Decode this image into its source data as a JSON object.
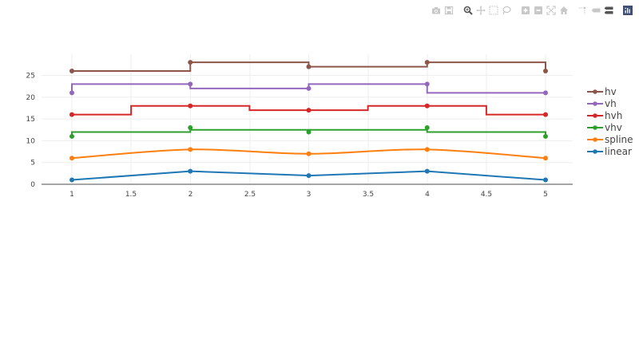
{
  "modebar": {
    "buttons": [
      {
        "name": "camera-icon",
        "title": "Download plot as a png"
      },
      {
        "name": "save-icon",
        "title": "Save and edit plot in cloud"
      },
      {
        "name": "zoom-icon",
        "title": "Zoom",
        "active": true
      },
      {
        "name": "pan-icon",
        "title": "Pan"
      },
      {
        "name": "box-select-icon",
        "title": "Box Select"
      },
      {
        "name": "lasso-icon",
        "title": "Lasso Select"
      },
      {
        "name": "zoom-in-icon",
        "title": "Zoom in"
      },
      {
        "name": "zoom-out-icon",
        "title": "Zoom out"
      },
      {
        "name": "autoscale-icon",
        "title": "Autoscale"
      },
      {
        "name": "home-icon",
        "title": "Reset axes"
      },
      {
        "name": "spikelines-icon",
        "title": "Toggle Spike Lines"
      },
      {
        "name": "hover-closest-icon",
        "title": "Show closest data on hover"
      },
      {
        "name": "hover-compare-icon",
        "title": "Compare data on hover"
      },
      {
        "name": "plotly-logo-icon",
        "title": "Produced with Plotly"
      }
    ]
  },
  "chart_data": {
    "type": "line",
    "title": "",
    "xlabel": "",
    "ylabel": "",
    "x": [
      1,
      2,
      3,
      4,
      5
    ],
    "xlim": [
      0.75,
      5.25
    ],
    "ylim": [
      0,
      29.5
    ],
    "x_ticks": [
      "1",
      "1.5",
      "2",
      "2.5",
      "3",
      "3.5",
      "4",
      "4.5",
      "5"
    ],
    "y_ticks": [
      "0",
      "5",
      "10",
      "15",
      "20",
      "25"
    ],
    "grid": true,
    "legend_position": "right",
    "series": [
      {
        "name": "linear",
        "shape": "linear",
        "color": "#1f77b4",
        "values": [
          1,
          3,
          2,
          3,
          1
        ]
      },
      {
        "name": "spline",
        "shape": "spline",
        "color": "#ff7f0e",
        "values": [
          6,
          8,
          7,
          8,
          6
        ]
      },
      {
        "name": "vhv",
        "shape": "vhv",
        "color": "#2ca02c",
        "values": [
          11,
          13,
          12,
          13,
          11
        ]
      },
      {
        "name": "hvh",
        "shape": "hvh",
        "color": "#d62728",
        "values": [
          16,
          18,
          17,
          18,
          16
        ]
      },
      {
        "name": "vh",
        "shape": "vh",
        "color": "#9467bd",
        "values": [
          21,
          23,
          22,
          23,
          21
        ]
      },
      {
        "name": "hv",
        "shape": "hv",
        "color": "#8c564b",
        "values": [
          26,
          28,
          27,
          28,
          26
        ]
      }
    ]
  },
  "legend": {
    "items": [
      "hv",
      "vh",
      "hvh",
      "vhv",
      "spline",
      "linear"
    ]
  }
}
